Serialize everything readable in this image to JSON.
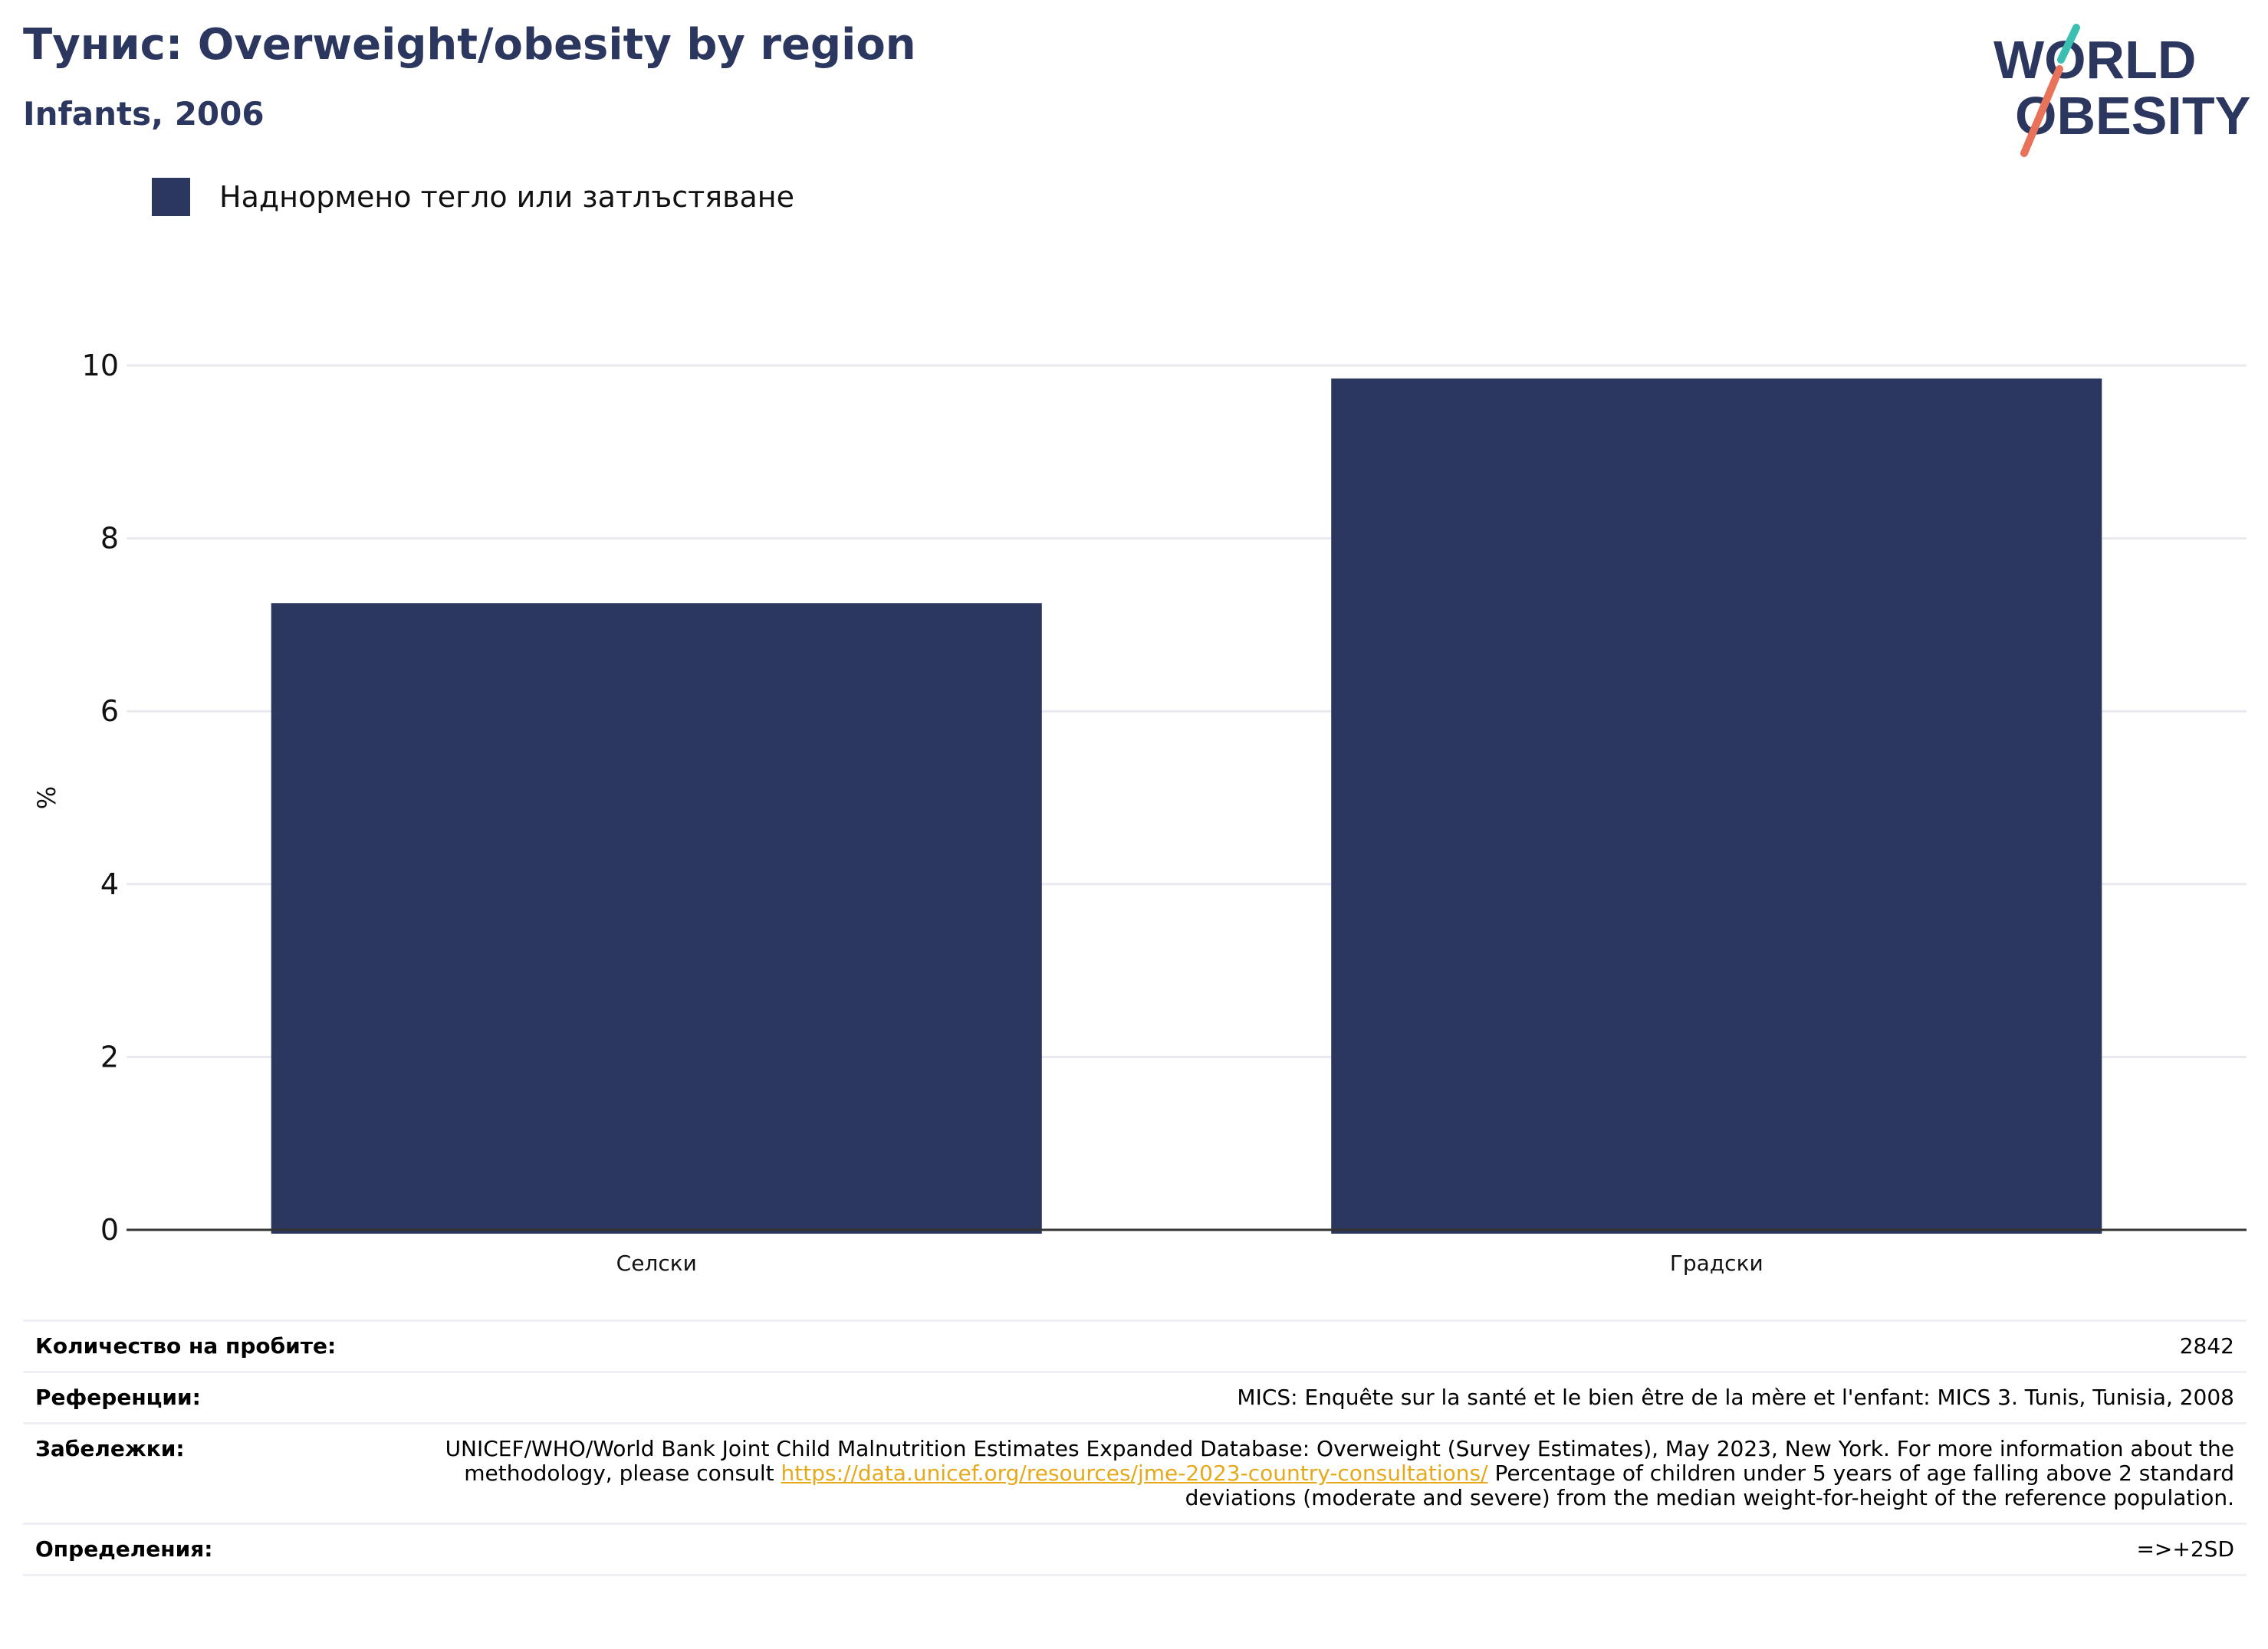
{
  "header": {
    "title": "Тунис: Overweight/obesity by region",
    "subtitle": "Infants, 2006"
  },
  "logo": {
    "line1": "WORLD",
    "line2": "OBESITY"
  },
  "legend": {
    "label": "Наднормено тегло или затлъстяване",
    "color": "#2b375f"
  },
  "chart_data": {
    "type": "bar",
    "categories": [
      "Селски",
      "Градски"
    ],
    "series": [
      {
        "name": "Наднормено тегло или затлъстяване",
        "values": [
          7.25,
          9.85
        ],
        "color": "#2b375f"
      }
    ],
    "ylabel": "%",
    "ylim": [
      0,
      10
    ],
    "yticks": [
      0,
      2,
      4,
      6,
      8,
      10
    ],
    "grid": true,
    "legend_position": "top-left"
  },
  "info": {
    "sample_label": "Количество на пробите:",
    "sample_value": "2842",
    "references_label": "Референции:",
    "references_value": "MICS: Enquête sur la santé et le bien être de la mère et l'enfant: MICS 3. Tunis, Tunisia, 2008",
    "notes_label": "Забележки:",
    "notes_before": "UNICEF/WHO/World Bank Joint Child Malnutrition Estimates Expanded Database: Overweight (Survey Estimates), May 2023, New York. For more information about the methodology, please consult",
    "notes_link": "https://data.unicef.org/resources/jme-2023-country-consultations/",
    "notes_after": "Percentage of children under 5 years of age falling above 2 standard deviations (moderate and severe) from the median weight-for-height of the reference population.",
    "definitions_label": "Определения:",
    "definitions_value": "=>+2SD"
  }
}
